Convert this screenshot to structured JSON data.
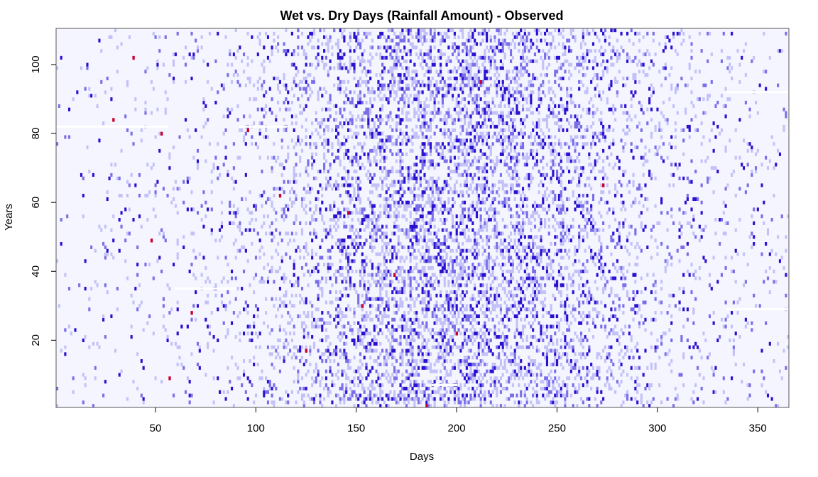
{
  "chart_data": {
    "type": "heatmap",
    "title": "Wet vs. Dry Days (Rainfall Amount) - Observed",
    "xlabel": "Days",
    "ylabel": "Years",
    "xlim": [
      1,
      365
    ],
    "ylim": [
      1,
      110
    ],
    "x_ticks": [
      50,
      100,
      150,
      200,
      250,
      300,
      350
    ],
    "y_ticks": [
      20,
      40,
      60,
      80,
      100
    ],
    "x_tick_labels": [
      "50",
      "100",
      "150",
      "200",
      "250",
      "300",
      "350"
    ],
    "y_tick_labels": [
      "20",
      "40",
      "60",
      "80",
      "100"
    ],
    "grid": false,
    "legend": "none",
    "colors": {
      "dry": "#f5f5ff",
      "light_rain": "#c2c2f8",
      "moderate_rain": "#7a6fe8",
      "heavy_rain": "#2a10d0",
      "extreme_rain": "#c8002e",
      "missing": "#ffffff",
      "frame": "#555555"
    },
    "wet_probability_by_season": {
      "peak_day": 200,
      "peak_probability": 0.42,
      "spread_days": 60,
      "base_probability": 0.03
    },
    "notable_cells": [
      {
        "day": 39,
        "year": 102,
        "category": "extreme_rain"
      },
      {
        "day": 29,
        "year": 84,
        "category": "extreme_rain"
      },
      {
        "day": 53,
        "year": 80,
        "category": "extreme_rain"
      },
      {
        "day": 48,
        "year": 49,
        "category": "extreme_rain"
      },
      {
        "day": 68,
        "year": 28,
        "category": "extreme_rain"
      },
      {
        "day": 57,
        "year": 9,
        "category": "extreme_rain"
      },
      {
        "day": 212,
        "year": 95,
        "category": "extreme_rain"
      },
      {
        "day": 153,
        "year": 30,
        "category": "extreme_rain"
      },
      {
        "day": 146,
        "year": 57,
        "category": "extreme_rain"
      },
      {
        "day": 169,
        "year": 39,
        "category": "extreme_rain"
      },
      {
        "day": 273,
        "year": 65,
        "category": "extreme_rain"
      },
      {
        "day": 200,
        "year": 22,
        "category": "extreme_rain"
      },
      {
        "day": 125,
        "year": 17,
        "category": "extreme_rain"
      },
      {
        "day": 112,
        "year": 62,
        "category": "extreme_rain"
      },
      {
        "day": 96,
        "year": 81,
        "category": "extreme_rain"
      },
      {
        "day": 185,
        "year": 1,
        "category": "extreme_rain"
      }
    ],
    "missing_segments": [
      {
        "year": 82,
        "day_start": 1,
        "day_end": 56
      },
      {
        "year": 82,
        "day_start": 92,
        "day_end": 115
      },
      {
        "year": 35,
        "day_start": 60,
        "day_end": 90
      },
      {
        "year": 92,
        "day_start": 335,
        "day_end": 365
      },
      {
        "year": 29,
        "day_start": 335,
        "day_end": 365
      },
      {
        "year": 7,
        "day_start": 188,
        "day_end": 200
      }
    ]
  }
}
